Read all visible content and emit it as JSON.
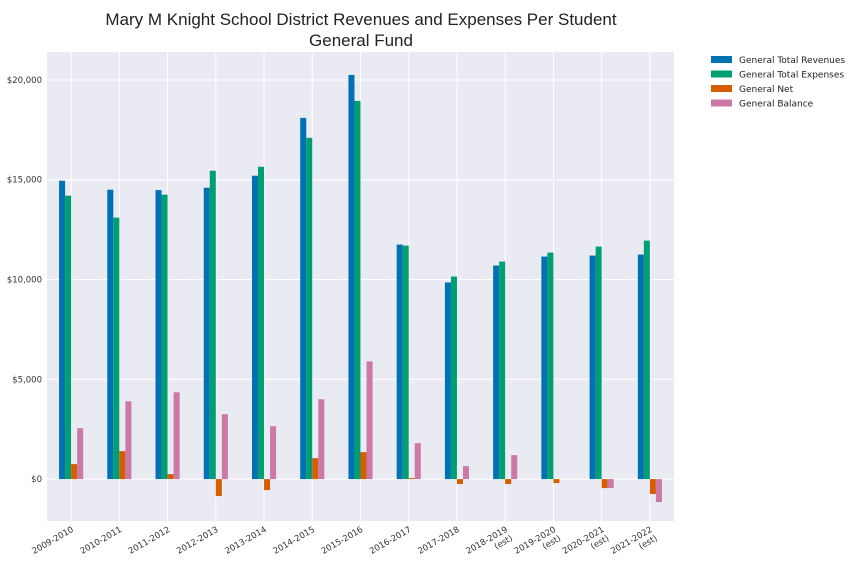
{
  "chart_data": {
    "type": "bar",
    "title": [
      "Mary M Knight School District Revenues and Expenses Per Student",
      "General Fund"
    ],
    "xlabel": "",
    "ylabel": "",
    "categories": [
      [
        "2009-2010"
      ],
      [
        "2010-2011"
      ],
      [
        "2011-2012"
      ],
      [
        "2012-2013"
      ],
      [
        "2013-2014"
      ],
      [
        "2014-2015"
      ],
      [
        "2015-2016"
      ],
      [
        "2016-2017"
      ],
      [
        "2017-2018"
      ],
      [
        "2018-2019",
        "(est)"
      ],
      [
        "2019-2020",
        "(est)"
      ],
      [
        "2020-2021",
        "(est)"
      ],
      [
        "2021-2022",
        "(est)"
      ]
    ],
    "ylim": [
      -2100,
      21400
    ],
    "yticks": [
      0,
      5000,
      10000,
      15000,
      20000
    ],
    "ytick_labels": [
      "$0",
      "$5,000",
      "$10,000",
      "$15,000",
      "$20,000"
    ],
    "grid": true,
    "legend_position": "outside-top-right",
    "series": [
      {
        "name": "General Total Revenues",
        "color": "#0072b2",
        "values": [
          14950,
          14500,
          14480,
          14600,
          15200,
          18100,
          20250,
          11750,
          9850,
          10700,
          11150,
          11200,
          11250
        ]
      },
      {
        "name": "General Total Expenses",
        "color": "#009e73",
        "values": [
          14200,
          13100,
          14250,
          15450,
          15650,
          17100,
          18950,
          11700,
          10150,
          10900,
          11350,
          11650,
          11950
        ]
      },
      {
        "name": "General Net",
        "color": "#d55e00",
        "values": [
          750,
          1400,
          250,
          -850,
          -550,
          1050,
          1350,
          50,
          -250,
          -250,
          -200,
          -450,
          -750
        ]
      },
      {
        "name": "General Balance",
        "color": "#cc79a7",
        "values": [
          2550,
          3900,
          4350,
          3250,
          2650,
          4000,
          5900,
          1800,
          650,
          1200,
          0,
          -450,
          -1150
        ]
      }
    ]
  },
  "style": {
    "plot_background": "#eaeaf2",
    "grid_color": "#ffffff"
  }
}
